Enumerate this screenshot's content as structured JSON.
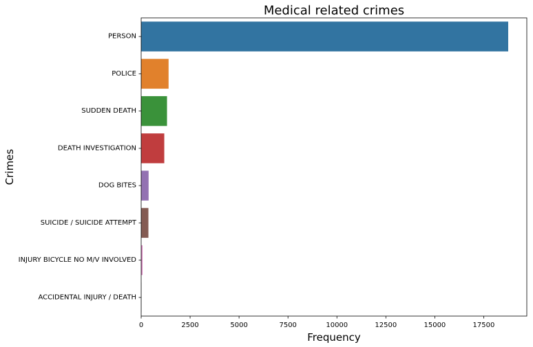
{
  "chart_data": {
    "type": "bar",
    "orientation": "horizontal",
    "title": "Medical related crimes",
    "xlabel": "Frequency",
    "ylabel": "Crimes",
    "categories": [
      "PERSON",
      "POLICE",
      "SUDDEN DEATH",
      "DEATH INVESTIGATION",
      "DOG BITES",
      "SUICIDE / SUICIDE ATTEMPT",
      "INJURY BICYCLE NO M/V INVOLVED",
      "ACCIDENTAL INJURY / DEATH"
    ],
    "values": [
      18750,
      1400,
      1320,
      1180,
      380,
      370,
      70,
      10
    ],
    "colors": [
      "#3274a1",
      "#e1812c",
      "#3a923a",
      "#c03d3e",
      "#9372b2",
      "#845b53",
      "#d684bd",
      "#7f7f7f"
    ],
    "xlim": [
      0,
      19700
    ],
    "xticks": [
      0,
      2500,
      5000,
      7500,
      10000,
      12500,
      15000,
      17500
    ],
    "grid": false,
    "legend": "none"
  }
}
